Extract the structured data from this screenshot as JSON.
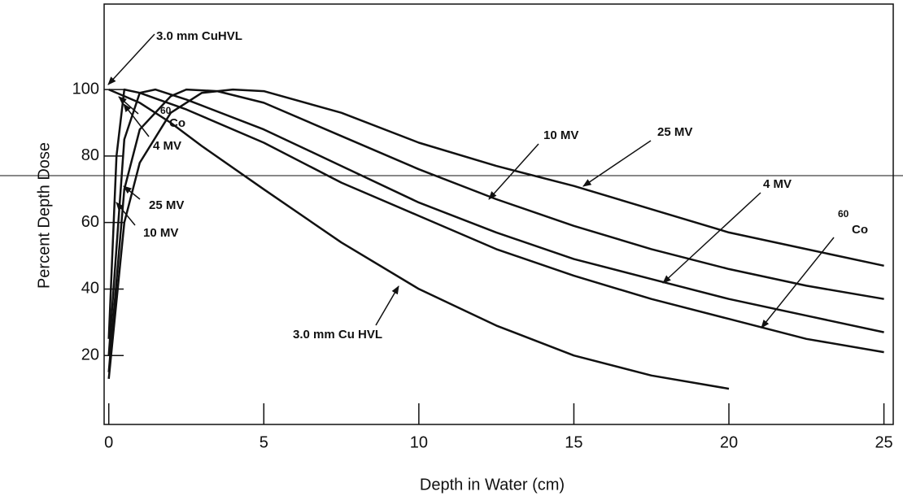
{
  "chart_data": {
    "type": "line",
    "x_label": "Depth in Water (cm)",
    "y_label": "Percent Depth Dose",
    "xlim": [
      -0.15,
      25.3
    ],
    "ylim": [
      -0.73,
      125.7
    ],
    "xticks": [
      0,
      5,
      10,
      15,
      20,
      25
    ],
    "yticks": [
      20,
      40,
      60,
      80,
      100
    ],
    "annotations": [
      "3.0 mm CuHVL",
      "60",
      "Co",
      "4 MV",
      "25 MV",
      "10 MV",
      "3.0 mm Cu HVL",
      "60"
    ],
    "series": [
      {
        "name": "25 MV",
        "color": "#111111",
        "x": [
          0,
          0.5,
          1,
          2,
          3,
          4,
          5,
          7.5,
          10,
          12.5,
          15,
          17.5,
          20,
          22.5,
          25
        ],
        "values": [
          13,
          60,
          78,
          93,
          99,
          100,
          99.5,
          93,
          84,
          77,
          71,
          64,
          57,
          52,
          47
        ]
      },
      {
        "name": "10 MV",
        "color": "#111111",
        "x": [
          0,
          0.5,
          1,
          2,
          2.5,
          3.5,
          5,
          7.5,
          10,
          12.5,
          15,
          17.5,
          20,
          22.5,
          25
        ],
        "values": [
          15,
          70,
          88,
          98,
          100,
          99.5,
          96,
          86,
          76,
          67,
          59,
          52,
          46,
          41,
          37
        ]
      },
      {
        "name": "4 MV",
        "color": "#111111",
        "x": [
          0,
          0.5,
          1,
          1.5,
          2.5,
          5,
          7.5,
          10,
          12.5,
          15,
          17.5,
          20,
          22.5,
          25
        ],
        "values": [
          20,
          85,
          99,
          100,
          97,
          88,
          77,
          66,
          57,
          49,
          43,
          37,
          32,
          27
        ]
      },
      {
        "name": "Co",
        "color": "#111111",
        "x": [
          0,
          0.25,
          0.5,
          1,
          2.5,
          5,
          7.5,
          10,
          12.5,
          15,
          17.5,
          20,
          22.5,
          25
        ],
        "values": [
          25,
          80,
          100,
          99,
          94,
          84,
          72,
          62,
          52,
          44,
          37,
          31,
          25,
          21
        ]
      },
      {
        "name": "3.0 mm Cu HVL",
        "color": "#111111",
        "x": [
          0,
          1,
          2,
          3,
          5,
          7.5,
          10,
          12.5,
          15,
          17.5,
          20
        ],
        "values": [
          100,
          96,
          90,
          83,
          70,
          54,
          40,
          29,
          20,
          14,
          10
        ]
      }
    ]
  }
}
